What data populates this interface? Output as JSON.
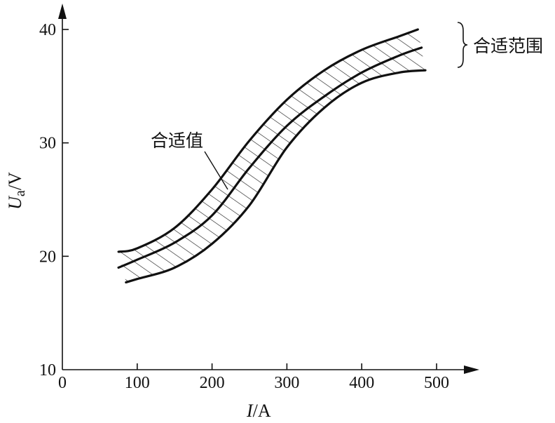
{
  "chart_data": {
    "type": "line",
    "title": "",
    "xlabel": {
      "var": "I",
      "sep": "/",
      "unit": "A"
    },
    "ylabel": {
      "var": "U",
      "sub": "a",
      "sep": "/",
      "unit": "V"
    },
    "xlim": [
      0,
      500
    ],
    "ylim": [
      10,
      40
    ],
    "xticks": [
      "0",
      "100",
      "200",
      "300",
      "400",
      "500"
    ],
    "yticks": [
      "10",
      "20",
      "30",
      "40"
    ],
    "grid": false,
    "series": [
      {
        "role": "upper",
        "x": [
          75,
          100,
          150,
          200,
          250,
          300,
          350,
          400,
          450,
          475
        ],
        "y": [
          20.4,
          20.7,
          22.5,
          25.9,
          30.2,
          33.8,
          36.4,
          38.2,
          39.4,
          40.0
        ]
      },
      {
        "role": "middle",
        "x": [
          75,
          100,
          150,
          200,
          250,
          300,
          350,
          400,
          450,
          480
        ],
        "y": [
          19.0,
          19.7,
          21.2,
          23.6,
          27.8,
          31.5,
          34.1,
          36.2,
          37.7,
          38.4
        ]
      },
      {
        "role": "lower",
        "x": [
          85,
          100,
          150,
          200,
          250,
          300,
          350,
          400,
          450,
          485
        ],
        "y": [
          17.7,
          18.0,
          19.0,
          21.1,
          24.5,
          29.6,
          33.1,
          35.3,
          36.2,
          36.4
        ]
      }
    ],
    "annotations": {
      "band_label": "合适范围",
      "curve_label": "合适值"
    }
  }
}
